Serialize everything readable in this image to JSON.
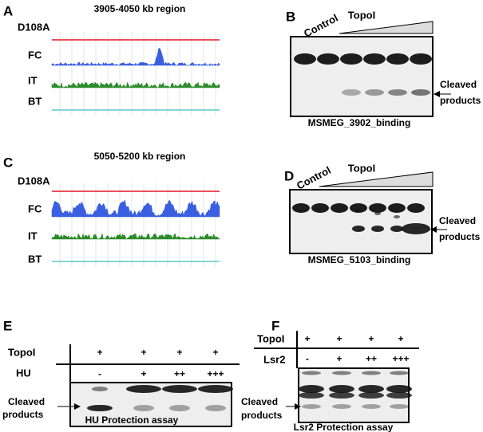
{
  "panels": {
    "A": {
      "letter": "A",
      "title": "3905-4050 kb region",
      "tracks": [
        "D108A",
        "FC",
        "IT",
        "BT"
      ]
    },
    "B": {
      "letter": "B",
      "control": "Control",
      "enzyme": "TopoI",
      "product": [
        "Cleaved",
        "products"
      ],
      "caption": "MSMEG_3902_binding"
    },
    "C": {
      "letter": "C",
      "title": "5050-5200 kb region",
      "tracks": [
        "D108A",
        "FC",
        "IT",
        "BT"
      ]
    },
    "D": {
      "letter": "D",
      "control": "Control",
      "enzyme": "TopoI",
      "product": [
        "Cleaved",
        "products"
      ],
      "caption": "MSMEG_5103_binding"
    },
    "E": {
      "letter": "E",
      "rows": [
        {
          "label": "TopoI",
          "marks": [
            "+",
            "+",
            "+",
            "+"
          ]
        },
        {
          "label": "HU",
          "marks": [
            "-",
            "+",
            "++",
            "+++"
          ]
        }
      ],
      "product": [
        "Cleaved",
        "products"
      ],
      "caption": "HU Protection assay"
    },
    "F": {
      "letter": "F",
      "rows": [
        {
          "label": "TopoI",
          "marks": [
            "+",
            "+",
            "+",
            "+"
          ]
        },
        {
          "label": "Lsr2",
          "marks": [
            "-",
            "+",
            "++",
            "+++"
          ]
        }
      ],
      "product": [
        "Cleaved",
        "products"
      ],
      "caption": "Lsr2 Protection assay"
    }
  }
}
